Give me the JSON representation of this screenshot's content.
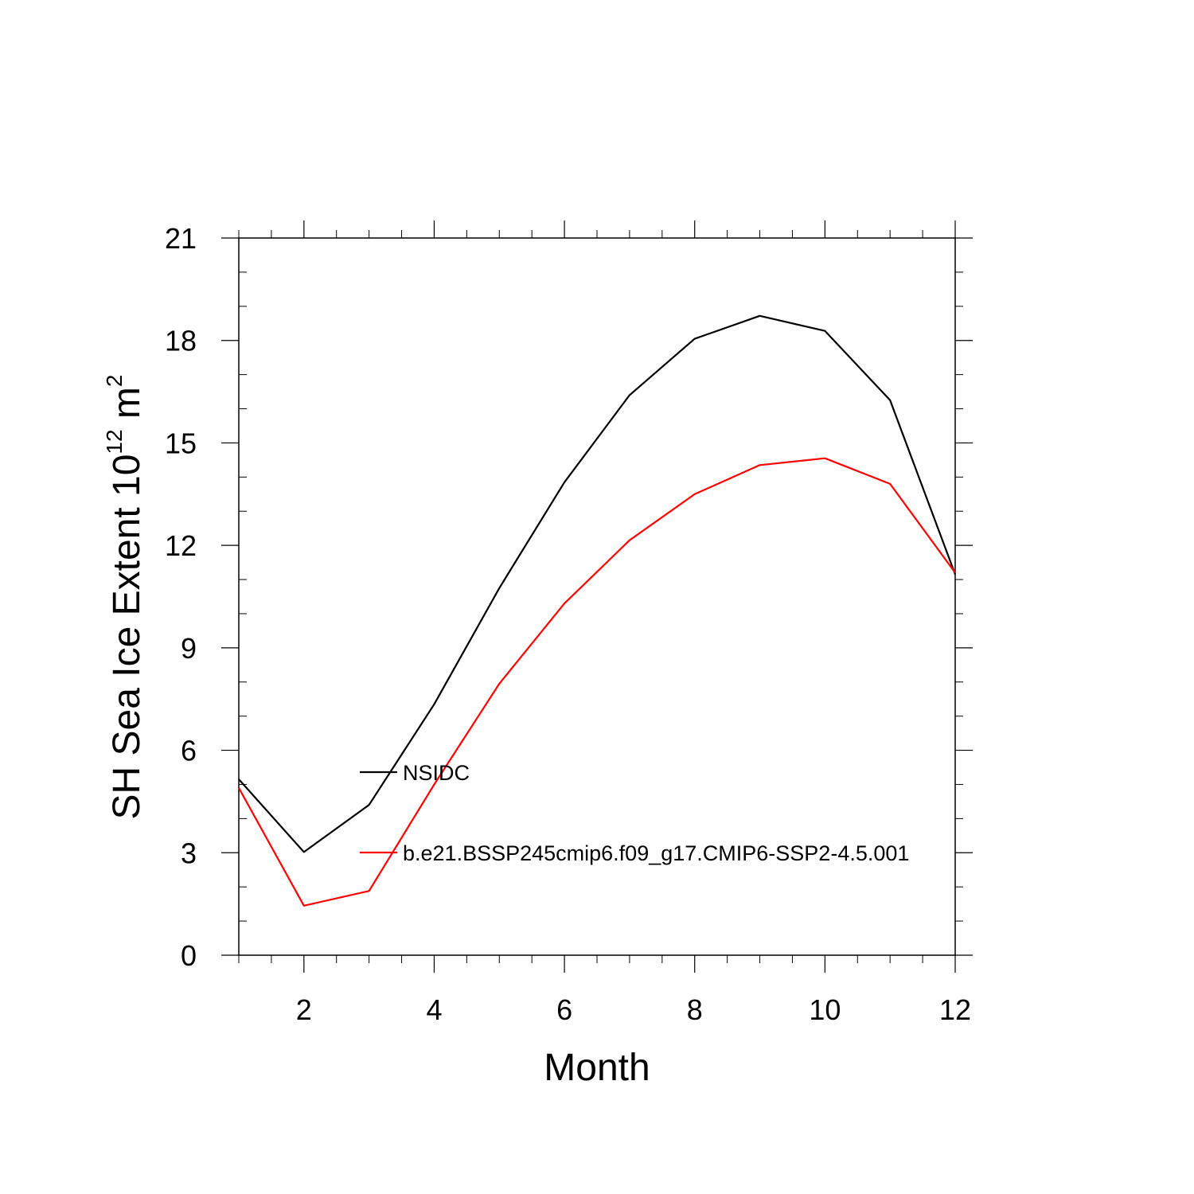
{
  "chart_data": {
    "type": "line",
    "xlabel": "Month",
    "ylabel": {
      "text": "SH Sea Ice Extent 10",
      "superscript": "12",
      "unit": " m",
      "unit_superscript": "2"
    },
    "xlim": [
      1,
      12
    ],
    "ylim": [
      0,
      21
    ],
    "x_ticks": [
      2,
      4,
      6,
      8,
      10,
      12
    ],
    "x_minor_step": 0.5,
    "y_ticks": [
      0,
      3,
      6,
      9,
      12,
      15,
      18,
      21
    ],
    "y_minor_step": 1,
    "grid": false,
    "legend_placement": "inside-lower-middle",
    "x": [
      1,
      2,
      3,
      4,
      5,
      6,
      7,
      8,
      9,
      10,
      11,
      12
    ],
    "series": [
      {
        "name": "NSIDC",
        "color": "#000000",
        "values": [
          5.15,
          3.02,
          4.4,
          7.35,
          10.75,
          13.85,
          16.4,
          18.05,
          18.72,
          18.28,
          16.25,
          11.15
        ]
      },
      {
        "name": "b.e21.BSSP245cmip6.f09_g17.CMIP6-SSP2-4.5.001",
        "color": "#ff0000",
        "values": [
          4.9,
          1.45,
          1.88,
          5.0,
          7.95,
          10.3,
          12.15,
          13.5,
          14.35,
          14.55,
          13.8,
          11.2
        ]
      }
    ]
  }
}
